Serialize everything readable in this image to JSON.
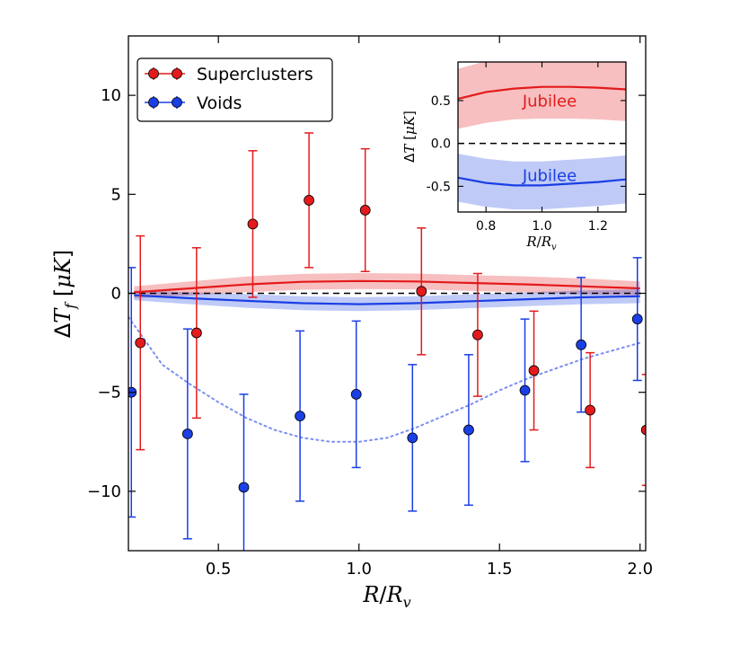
{
  "chart_data": [
    {
      "type": "scatter",
      "xlabel": "R/R_v",
      "ylabel": "ΔT_f [μK]",
      "xlim": [
        0.18,
        2.02
      ],
      "ylim": [
        -13,
        13
      ],
      "xticks": [
        "0.5",
        "1.0",
        "1.5",
        "2.0"
      ],
      "xtick_values": [
        0.5,
        1.0,
        1.5,
        2.0
      ],
      "yticks": [
        "−10",
        "−5",
        "0",
        "5",
        "10"
      ],
      "ytick_values": [
        -10,
        -5,
        0,
        5,
        10
      ],
      "legend_position": "top-left",
      "grid": false,
      "series": [
        {
          "name": "Superclusters",
          "color": "#e41a1c",
          "x": [
            0.2,
            0.4,
            0.6,
            0.8,
            1.0,
            1.2,
            1.4,
            1.6,
            1.8,
            2.0
          ],
          "y": [
            -2.5,
            -2.0,
            3.5,
            4.7,
            4.2,
            0.1,
            -2.1,
            -3.9,
            -5.9,
            -6.9
          ],
          "err": [
            5.4,
            4.3,
            3.7,
            3.4,
            3.1,
            3.2,
            3.1,
            3.0,
            2.9,
            2.8
          ]
        },
        {
          "name": "Voids",
          "color": "#1a3fe4",
          "x": [
            0.2,
            0.4,
            0.6,
            0.8,
            1.0,
            1.2,
            1.4,
            1.6,
            1.8,
            2.0
          ],
          "y": [
            -5.0,
            -7.1,
            -9.8,
            -6.2,
            -5.1,
            -7.3,
            -6.9,
            -4.9,
            -2.6,
            -1.3
          ],
          "err": [
            6.3,
            5.3,
            4.7,
            4.3,
            3.7,
            3.7,
            3.8,
            3.6,
            3.4,
            3.1
          ]
        }
      ],
      "model_curves": [
        {
          "color": "#e41a1c",
          "x": [
            0.2,
            0.4,
            0.6,
            0.8,
            1.0,
            1.2,
            1.4,
            1.6,
            1.8,
            2.0
          ],
          "y": [
            0.05,
            0.25,
            0.45,
            0.58,
            0.62,
            0.6,
            0.52,
            0.45,
            0.35,
            0.25
          ],
          "band": [
            0.3,
            0.35,
            0.4,
            0.4,
            0.4,
            0.4,
            0.4,
            0.4,
            0.4,
            0.35
          ]
        },
        {
          "color": "#1a3fe4",
          "x": [
            0.2,
            0.4,
            0.6,
            0.8,
            1.0,
            1.2,
            1.4,
            1.6,
            1.8,
            2.0
          ],
          "y": [
            -0.1,
            -0.25,
            -0.38,
            -0.5,
            -0.55,
            -0.5,
            -0.4,
            -0.3,
            -0.2,
            -0.15
          ],
          "band": [
            0.25,
            0.3,
            0.35,
            0.35,
            0.35,
            0.35,
            0.35,
            0.35,
            0.35,
            0.35
          ]
        },
        {
          "color": "#7b8ff0",
          "style": "dotted",
          "x": [
            0.18,
            0.3,
            0.4,
            0.5,
            0.6,
            0.7,
            0.8,
            0.9,
            1.0,
            1.1,
            1.2,
            1.3,
            1.4,
            1.5,
            1.6,
            1.7,
            1.8,
            1.9,
            2.0
          ],
          "y": [
            -1.2,
            -3.6,
            -4.6,
            -5.5,
            -6.3,
            -6.9,
            -7.3,
            -7.5,
            -7.5,
            -7.3,
            -6.8,
            -6.2,
            -5.6,
            -4.9,
            -4.3,
            -3.8,
            -3.3,
            -2.9,
            -2.5
          ]
        }
      ]
    },
    {
      "type": "line",
      "xlabel": "R/R_v",
      "ylabel": "ΔT [μK]",
      "xlim": [
        0.7,
        1.3
      ],
      "ylim": [
        -0.8,
        0.95
      ],
      "xticks": [
        "0.8",
        "1.0",
        "1.2"
      ],
      "xtick_values": [
        0.8,
        1.0,
        1.2
      ],
      "yticks": [
        "0.5",
        "0.0",
        "-0.5"
      ],
      "ytick_values": [
        0.5,
        0.0,
        -0.5
      ],
      "series": [
        {
          "label": "Jubilee",
          "color": "#e41a1c",
          "x": [
            0.7,
            0.8,
            0.9,
            1.0,
            1.1,
            1.2,
            1.3
          ],
          "y": [
            0.52,
            0.6,
            0.64,
            0.66,
            0.66,
            0.65,
            0.63
          ],
          "band": [
            0.35,
            0.36,
            0.36,
            0.37,
            0.37,
            0.37,
            0.37
          ]
        },
        {
          "label": "Jubilee",
          "color": "#1a3fe4",
          "x": [
            0.7,
            0.8,
            0.9,
            1.0,
            1.1,
            1.2,
            1.3
          ],
          "y": [
            -0.4,
            -0.46,
            -0.49,
            -0.49,
            -0.47,
            -0.45,
            -0.42
          ],
          "band": [
            0.28,
            0.28,
            0.28,
            0.28,
            0.28,
            0.28,
            0.28
          ]
        }
      ]
    }
  ]
}
